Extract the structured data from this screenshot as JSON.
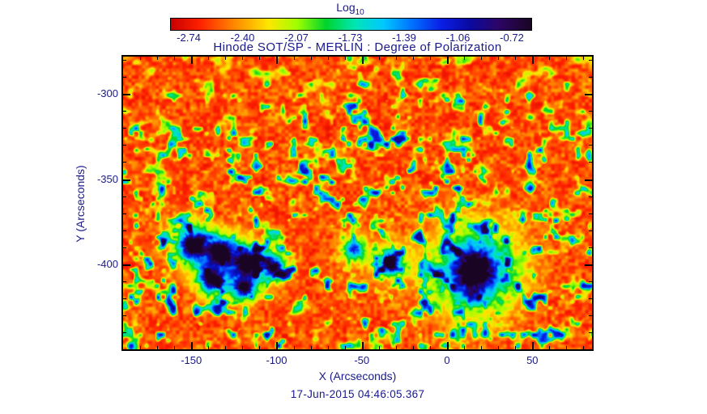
{
  "figure": {
    "colorbar_title": "Log",
    "colorbar_title_sub": "10"
  },
  "chart_data": {
    "type": "heatmap",
    "title": "Hinode SOT/SP - MERLIN : Degree of Polarization",
    "xlabel": "X (Arcseconds)",
    "ylabel": "Y (Arcseconds)",
    "timestamp": "17-Jun-2015 04:46:05.367",
    "xlim": [
      -190,
      85
    ],
    "ylim": [
      -450,
      -278
    ],
    "xticks": [
      -150,
      -100,
      -50,
      0,
      50
    ],
    "yticks": [
      -300,
      -350,
      -400
    ],
    "grid": false,
    "colorbar": {
      "label": "Log10",
      "orientation": "horizontal",
      "range": [
        -2.74,
        -0.72
      ],
      "ticks": [
        -2.74,
        -2.4,
        -2.07,
        -1.73,
        -1.39,
        -1.06,
        -0.72
      ],
      "tick_labels": [
        "-2.74",
        "-2.40",
        "-2.07",
        "-1.73",
        "-1.39",
        "-1.06",
        "-0.72"
      ],
      "colormap": "rainbow",
      "stops": [
        {
          "pos": 0.0,
          "color": "#c80000"
        },
        {
          "pos": 0.08,
          "color": "#ff2000"
        },
        {
          "pos": 0.18,
          "color": "#ff8c00"
        },
        {
          "pos": 0.27,
          "color": "#ffe600"
        },
        {
          "pos": 0.35,
          "color": "#a0ff00"
        },
        {
          "pos": 0.43,
          "color": "#00d42c"
        },
        {
          "pos": 0.51,
          "color": "#00e6b4"
        },
        {
          "pos": 0.59,
          "color": "#00c8ff"
        },
        {
          "pos": 0.67,
          "color": "#0070ff"
        },
        {
          "pos": 0.75,
          "color": "#0a1ee6"
        },
        {
          "pos": 0.83,
          "color": "#0a0aa0"
        },
        {
          "pos": 0.91,
          "color": "#2d0564"
        },
        {
          "pos": 1.0,
          "color": "#190523"
        }
      ]
    },
    "value_description": "log10 degree of polarization; quiet sun red (~-2.7), plage/network green-cyan, sunspot penumbrae blue, umbral cores dark purple (~-0.72)",
    "features": {
      "sunspots": [
        {
          "x": -149,
          "y": -389,
          "core_r": 6,
          "pen_r": 13,
          "amp": 1.0
        },
        {
          "x": -133,
          "y": -393,
          "core_r": 5,
          "pen_r": 11,
          "amp": 0.95
        },
        {
          "x": -117,
          "y": -399,
          "core_r": 6,
          "pen_r": 13,
          "amp": 1.0
        },
        {
          "x": -138,
          "y": -409,
          "core_r": 5,
          "pen_r": 10,
          "amp": 0.9
        },
        {
          "x": -119,
          "y": -414,
          "core_r": 4,
          "pen_r": 9,
          "amp": 0.85
        },
        {
          "x": -101,
          "y": -402,
          "core_r": 4,
          "pen_r": 9,
          "amp": 0.78
        },
        {
          "x": 16,
          "y": -404,
          "core_r": 11,
          "pen_r": 26,
          "amp": 1.05
        },
        {
          "x": -33,
          "y": -399,
          "core_r": 5,
          "pen_r": 11,
          "amp": 0.72
        },
        {
          "x": -55,
          "y": -391,
          "core_r": 4,
          "pen_r": 9,
          "amp": 0.6
        }
      ],
      "plage_regions": [
        {
          "x": -70,
          "y": -392,
          "sx": 85,
          "sy": 40,
          "amp": 0.95
        },
        {
          "x": -130,
          "y": -400,
          "sx": 45,
          "sy": 30,
          "amp": 0.9
        },
        {
          "x": 16,
          "y": -404,
          "sx": 36,
          "sy": 28,
          "amp": 0.95
        },
        {
          "x": -30,
          "y": -352,
          "sx": 110,
          "sy": 30,
          "amp": 0.75
        },
        {
          "x": -150,
          "y": -428,
          "sx": 55,
          "sy": 26,
          "amp": 0.85
        },
        {
          "x": -175,
          "y": -355,
          "sx": 35,
          "sy": 35,
          "amp": 0.6
        },
        {
          "x": 25,
          "y": -312,
          "sx": 55,
          "sy": 25,
          "amp": 0.45
        },
        {
          "x": 55,
          "y": -425,
          "sx": 45,
          "sy": 28,
          "amp": 0.55
        },
        {
          "x": 70,
          "y": -435,
          "sx": 30,
          "sy": 25,
          "amp": 0.7
        },
        {
          "x": -180,
          "y": -400,
          "sx": 30,
          "sy": 50,
          "amp": 0.7
        },
        {
          "x": -60,
          "y": -300,
          "sx": 40,
          "sy": 20,
          "amp": 0.3
        }
      ]
    }
  }
}
